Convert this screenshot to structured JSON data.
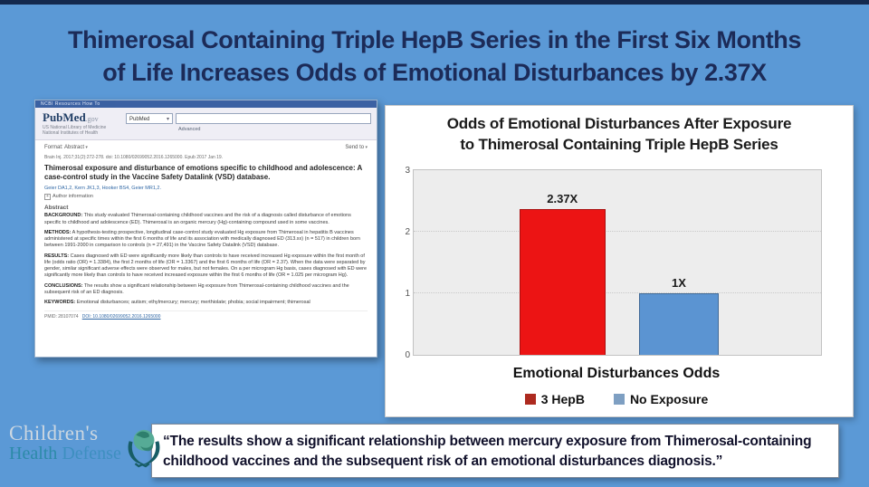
{
  "slide": {
    "title_line1": "Thimerosal Containing Triple HepB Series in the First Six Months",
    "title_line2": "of Life Increases Odds of Emotional Disturbances by 2.37X",
    "background_color": "#5b99d6",
    "title_color": "#1c2b58",
    "top_border_color": "#14294e"
  },
  "pubmed": {
    "browser_bar_text": "NCBI   Resources   How To",
    "logo_main": "PubMed",
    "logo_suffix": ".gov",
    "logo_sub1": "US National Library of Medicine",
    "logo_sub2": "National Institutes of Health",
    "search_scope": "PubMed",
    "advanced_label": "Advanced",
    "format_label": "Format: Abstract",
    "send_to_label": "Send to",
    "citation": "Brain Inj. 2017;31(2):272-278. doi: 10.1080/02699052.2016.1265000. Epub 2017 Jan 19.",
    "article_title": "Thimerosal exposure and disturbance of emotions specific to childhood and adolescence: A case-control study in the Vaccine Safety Datalink (VSD) database.",
    "authors": "Geier DA1,2, Kern JK1,3, Hooker BS4, Geier MR1,2.",
    "author_info_label": "Author information",
    "abstract_heading": "Abstract",
    "sections": [
      {
        "label": "BACKGROUND:",
        "text": "This study evaluated Thimerosal-containing childhood vaccines and the risk of a diagnosis called disturbance of emotions specific to childhood and adolescence (ED). Thimerosal is an organic mercury (Hg)-containing compound used in some vaccines."
      },
      {
        "label": "METHODS:",
        "text": "A hypothesis-testing prospective, longitudinal case-control study evaluated Hg exposure from Thimerosal in hepatitis B vaccines administered at specific times within the first 6 months of life and its association with medically diagnosed ED (313.xx) (n = 517) in children born between 1991-2000 in comparison to controls (n = 27,491) in the Vaccine Safety Datalink (VSD) database."
      },
      {
        "label": "RESULTS:",
        "text": "Cases diagnosed with ED were significantly more likely than controls to have received increased Hg exposure within the first month of life (odds ratio (OR) = 1.3384), the first 2 months of life (OR = 1.3367) and the first 6 months of life (OR = 2.37). When the data were separated by gender, similar significant adverse effects were observed for males, but not females. On a per microgram Hg basis, cases diagnosed with ED were significantly more likely than controls to have received increased exposure within the first 6 months of life (OR = 1.025 per microgram Hg)."
      },
      {
        "label": "CONCLUSIONS:",
        "text": "The results show a significant relationship between Hg exposure from Thimerosal-containing childhood vaccines and the subsequent risk of an ED diagnosis."
      },
      {
        "label": "KEYWORDS:",
        "text": "Emotional disturbances; autism; ethylmercury; mercury; merthiolate; phobia; social impairment; thimerosal"
      }
    ],
    "footer_pmid": "PMID: 28107074",
    "footer_doi": "DOI: 10.1080/02699052.2016.1265000"
  },
  "chart_data": {
    "type": "bar",
    "title_line1": "Odds of Emotional Disturbances After Exposure",
    "title_line2": "to Thimerosal Containing Triple HepB Series",
    "categories": [
      "3 HepB",
      "No Exposure"
    ],
    "values": [
      2.37,
      1
    ],
    "bar_labels": [
      "2.37X",
      "1X"
    ],
    "bar_colors": [
      "#ec1414",
      "#5b94d2"
    ],
    "legend": [
      {
        "label": "3 HepB",
        "color": "#ad2a1f"
      },
      {
        "label": "No Exposure",
        "color": "#7e9fc2"
      }
    ],
    "xlabel": "Emotional Disturbances Odds",
    "ylabel": "",
    "ylim": [
      0,
      3
    ],
    "yticks": [
      0,
      1,
      2,
      3
    ],
    "grid": true,
    "legend_position": "bottom",
    "plot_background": "#ededed"
  },
  "quote": {
    "text": "“The results show a significant relationship between mercury exposure from Thimerosal-containing childhood vaccines and the subsequent risk of an emotional disturbances diagnosis.”"
  },
  "logo": {
    "line1": "Children's",
    "line2_a": "Health",
    "line2_b": "Defense"
  }
}
